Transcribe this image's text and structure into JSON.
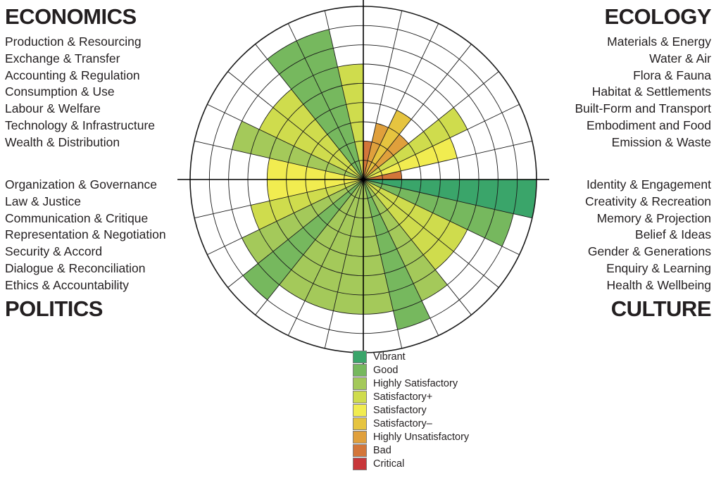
{
  "chart_data": {
    "type": "polar-area",
    "scale": [
      "Critical",
      "Bad",
      "Highly Unsatisfactory",
      "Satisfactory–",
      "Satisfactory",
      "Satisfactory+",
      "Highly Satisfactory",
      "Good",
      "Vibrant"
    ],
    "levels": 9,
    "legend": [
      {
        "label": "Vibrant",
        "color": "#3aa56a"
      },
      {
        "label": "Good",
        "color": "#76b85e"
      },
      {
        "label": "Highly Satisfactory",
        "color": "#a4c95a"
      },
      {
        "label": "Satisfactory+",
        "color": "#cfdc4d"
      },
      {
        "label": "Satisfactory",
        "color": "#f1ec50"
      },
      {
        "label": "Satisfactory–",
        "color": "#e6c43f"
      },
      {
        "label": "Highly Unsatisfactory",
        "color": "#e0a03c"
      },
      {
        "label": "Bad",
        "color": "#d3763a"
      },
      {
        "label": "Critical",
        "color": "#c8373a"
      }
    ],
    "domains": [
      {
        "name": "ECONOMICS",
        "position": "top-left",
        "items": [
          "Production & Resourcing",
          "Exchange & Transfer",
          "Accounting & Regulation",
          "Consumption & Use",
          "Labour & Welfare",
          "Technology & Infrastructure",
          "Wealth & Distribution"
        ],
        "values": [
          "Satisfactory+",
          "Good",
          "Good",
          "Satisfactory+",
          "Satisfactory+",
          "Highly Satisfactory",
          "Satisfactory"
        ]
      },
      {
        "name": "ECOLOGY",
        "position": "top-right",
        "items": [
          "Materials & Energy",
          "Water & Air",
          "Flora & Fauna",
          "Habitat & Settlements",
          "Built-Form and Transport",
          "Embodiment and Food",
          "Emission & Waste"
        ],
        "values": [
          "Bad",
          "Highly Unsatisfactory",
          "Satisfactory–",
          "Highly Unsatisfactory",
          "Satisfactory+",
          "Satisfactory",
          "Bad"
        ]
      },
      {
        "name": "CULTURE",
        "position": "bottom-right",
        "items": [
          "Identity & Engagement",
          "Creativity & Recreation",
          "Memory & Projection",
          "Belief & Ideas",
          "Gender & Generations",
          "Enquiry & Learning",
          "Health & Wellbeing"
        ],
        "values": [
          "Vibrant",
          "Good",
          "Satisfactory+",
          "Satisfactory+",
          "Highly Satisfactory",
          "Good",
          "Highly Satisfactory"
        ]
      },
      {
        "name": "POLITICS",
        "position": "bottom-left",
        "items": [
          "Organization & Governance",
          "Law & Justice",
          "Communication & Critique",
          "Representation & Negotiation",
          "Security & Accord",
          "Dialogue & Reconciliation",
          "Ethics & Accountability"
        ],
        "values": [
          "Highly Satisfactory",
          "Highly Satisfactory",
          "Highly Satisfactory",
          "Good",
          "Highly Satisfactory",
          "Satisfactory+",
          "Satisfactory"
        ]
      }
    ]
  }
}
